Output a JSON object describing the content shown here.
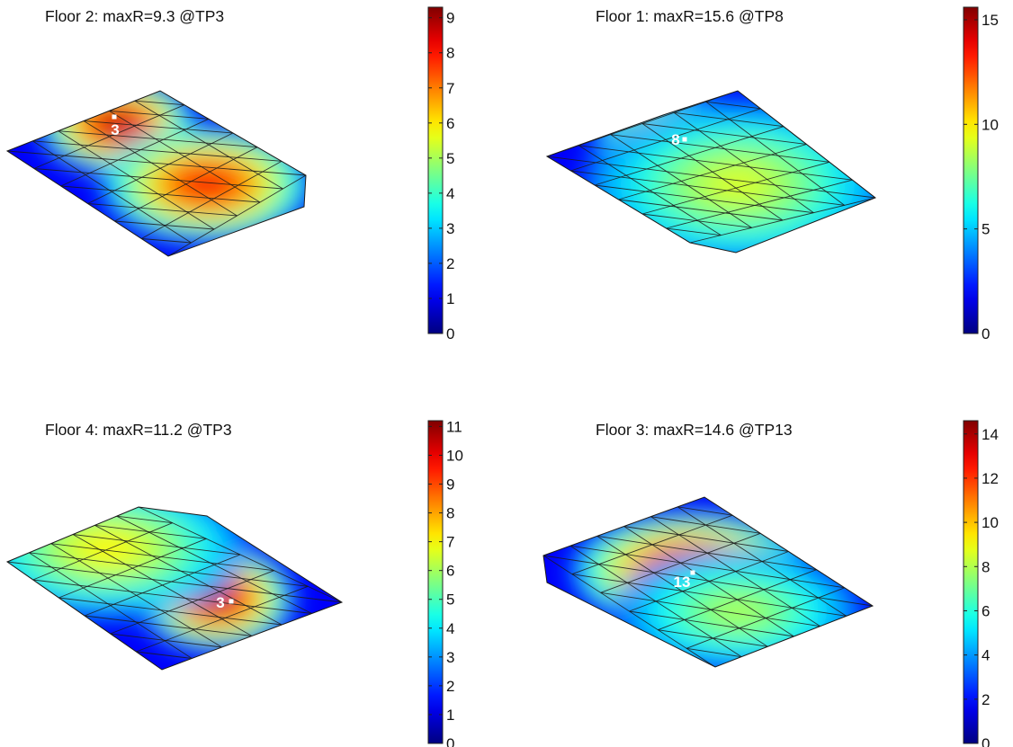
{
  "chart_data": [
    {
      "type": "heatmap",
      "title": "Floor 2: maxR=9.3 @TP3",
      "floor": 2,
      "max_value": 9.3,
      "max_point_label": "3",
      "colorbar": {
        "min": 0,
        "max": 9.3,
        "ticks": [
          0,
          1,
          2,
          3,
          4,
          5,
          6,
          7,
          8,
          9
        ]
      },
      "colormap": "jet"
    },
    {
      "type": "heatmap",
      "title": "Floor 1: maxR=15.6 @TP8",
      "floor": 1,
      "max_value": 15.6,
      "max_point_label": "8",
      "colorbar": {
        "min": 0,
        "max": 15.6,
        "ticks": [
          0,
          5,
          10,
          15
        ]
      },
      "colormap": "jet"
    },
    {
      "type": "heatmap",
      "title": "Floor 4: maxR=11.2 @TP3",
      "floor": 4,
      "max_value": 11.2,
      "max_point_label": "3",
      "colorbar": {
        "min": 0,
        "max": 11.2,
        "ticks": [
          0,
          1,
          2,
          3,
          4,
          5,
          6,
          7,
          8,
          9,
          10,
          11
        ]
      },
      "colormap": "jet"
    },
    {
      "type": "heatmap",
      "title": "Floor 3: maxR=14.6 @TP13",
      "floor": 3,
      "max_value": 14.6,
      "max_point_label": "13",
      "colorbar": {
        "min": 0,
        "max": 14.6,
        "ticks": [
          0,
          2,
          4,
          6,
          8,
          10,
          12,
          14
        ]
      },
      "colormap": "jet"
    }
  ]
}
